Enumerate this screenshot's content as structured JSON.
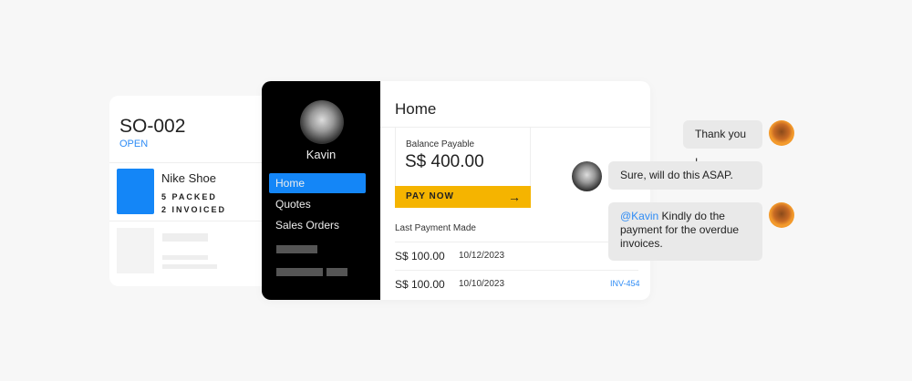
{
  "order": {
    "id": "SO-002",
    "status": "OPEN",
    "item": {
      "name": "Nike Shoe",
      "packed": "5 PACKED",
      "invoiced": "2 INVOICED"
    }
  },
  "sidebar": {
    "user": "Kavin",
    "items": [
      {
        "label": "Home",
        "active": true
      },
      {
        "label": "Quotes"
      },
      {
        "label": "Sales Orders"
      }
    ]
  },
  "home": {
    "title": "Home",
    "balance_label": "Balance Payable",
    "balance": "S$ 400.00",
    "pay_now": "PAY NOW",
    "last_payment_label": "Last Payment Made",
    "payments": [
      {
        "amount": "S$ 100.00",
        "date": "10/12/2023",
        "invoice": ""
      },
      {
        "amount": "S$ 100.00",
        "date": "10/10/2023",
        "invoice": "INV-454"
      }
    ]
  },
  "chat": {
    "messages": [
      {
        "text": "Thank you !"
      },
      {
        "text": "Sure, will do this ASAP."
      },
      {
        "mention": "@Kavin",
        "text": " Kindly do the payment for the overdue invoices."
      }
    ]
  },
  "colors": {
    "accent": "#1486f7",
    "pay": "#f5b400"
  }
}
